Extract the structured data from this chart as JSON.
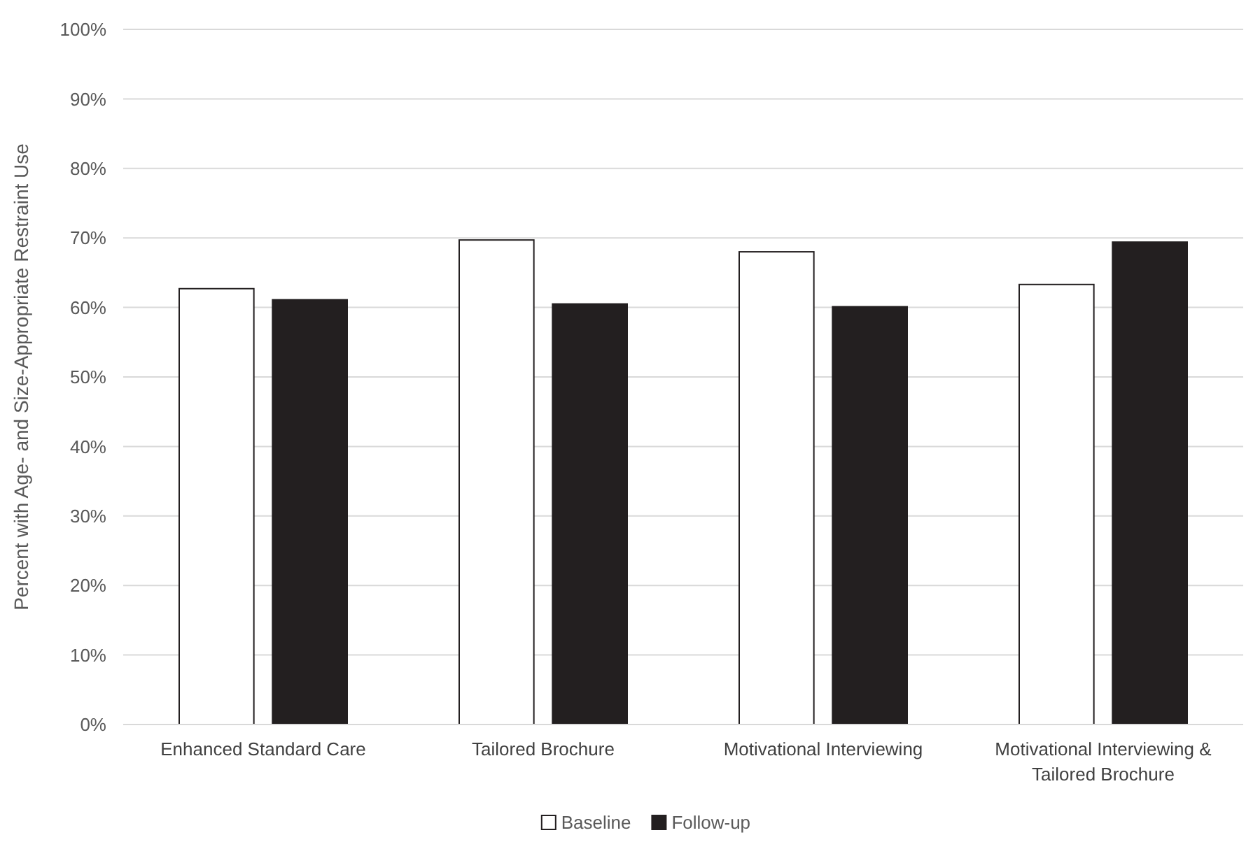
{
  "chart_data": {
    "type": "bar",
    "ylabel": "Percent with Age- and Size-Appropriate Restraint Use",
    "categories": [
      "Enhanced Standard Care",
      "Tailored Brochure",
      "Motivational Interviewing",
      "Motivational Interviewing & Tailored Brochure"
    ],
    "series": [
      {
        "name": "Baseline",
        "color": "#ffffff",
        "values": [
          62.7,
          69.7,
          68.0,
          63.3
        ]
      },
      {
        "name": "Follow-up",
        "color": "#231f20",
        "values": [
          61.1,
          60.5,
          60.1,
          69.4
        ]
      }
    ],
    "ylim": [
      0,
      100
    ],
    "yticks": [
      {
        "value": 0,
        "label": "0%"
      },
      {
        "value": 10,
        "label": "10%"
      },
      {
        "value": 20,
        "label": "20%"
      },
      {
        "value": 30,
        "label": "30%"
      },
      {
        "value": 40,
        "label": "40%"
      },
      {
        "value": 50,
        "label": "50%"
      },
      {
        "value": 60,
        "label": "60%"
      },
      {
        "value": 70,
        "label": "70%"
      },
      {
        "value": 80,
        "label": "80%"
      },
      {
        "value": 90,
        "label": "90%"
      },
      {
        "value": 100,
        "label": "100%"
      }
    ],
    "grid": "y",
    "legend": "bottom"
  }
}
